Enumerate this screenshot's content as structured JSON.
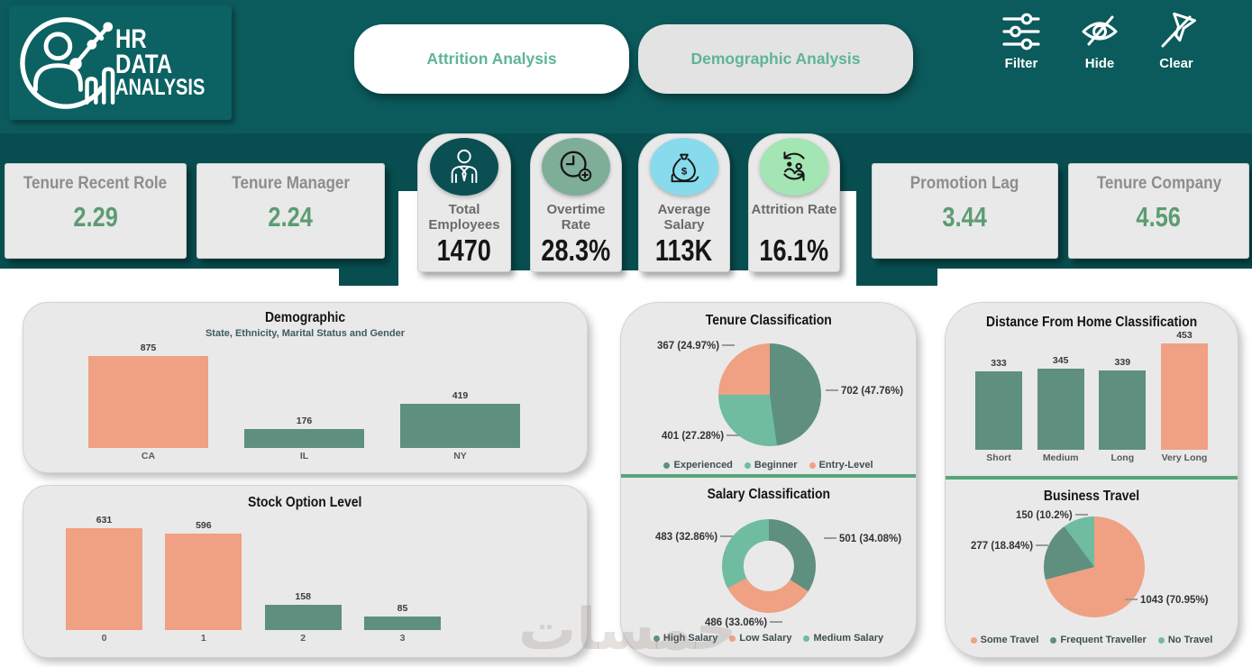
{
  "logo": {
    "line1": "HR",
    "line2": "DATA",
    "line3": "ANALYSIS"
  },
  "tabs": [
    {
      "label": "Attrition Analysis",
      "active": true
    },
    {
      "label": "Demographic Analysis",
      "active": false
    }
  ],
  "toolbar": [
    {
      "label": "Filter",
      "icon": "filter-sliders-icon"
    },
    {
      "label": "Hide",
      "icon": "eye-off-icon"
    },
    {
      "label": "Clear",
      "icon": "clear-filter-icon"
    }
  ],
  "kpis": {
    "left": [
      {
        "label": "Tenure Recent Role",
        "value": "2.29"
      },
      {
        "label": "Tenure Manager",
        "value": "2.24"
      }
    ],
    "center": [
      {
        "label": "Total Employees",
        "value": "1470",
        "icon": "employee-icon",
        "circle_color": "#0b4f52"
      },
      {
        "label": "Overtime Rate",
        "value": "28.3%",
        "icon": "clock-plus-icon",
        "circle_color": "#7fae98"
      },
      {
        "label": "Average Salary",
        "value": "113K",
        "icon": "money-bag-icon",
        "circle_color": "#87dbec"
      },
      {
        "label": "Attrition Rate",
        "value": "16.1%",
        "icon": "people-rotate-icon",
        "circle_color": "#a3e5b3"
      }
    ],
    "right": [
      {
        "label": "Promotion Lag",
        "value": "3.44"
      },
      {
        "label": "Tenure Company",
        "value": "4.56"
      }
    ]
  },
  "colors": {
    "teal_header": "#0b5a5c",
    "teal_dark": "#084e50",
    "card_gray": "#e9e9e9",
    "salmon": "#f0a183",
    "green_dark": "#5f8f7e",
    "green_mid": "#6fbca1",
    "divider_green": "#56a579",
    "kpi_value_green": "#5c9c73",
    "tab_text_green": "#5fb39b"
  },
  "chart_data": [
    {
      "type": "bar",
      "title": "Demographic",
      "subtitle": "State, Ethnicity, Marital Status and Gender",
      "categories": [
        "CA",
        "IL",
        "NY"
      ],
      "values": [
        875,
        176,
        419
      ],
      "bar_colors": [
        "#f0a183",
        "#5f8f7e",
        "#5f8f7e"
      ],
      "ylim": [
        0,
        875
      ],
      "grid": false,
      "legend_position": "none"
    },
    {
      "type": "bar",
      "title": "Stock Option Level",
      "categories": [
        "0",
        "1",
        "2",
        "3"
      ],
      "values": [
        631,
        596,
        158,
        85
      ],
      "bar_colors": [
        "#f0a183",
        "#f0a183",
        "#5f8f7e",
        "#5f8f7e"
      ],
      "ylim": [
        0,
        631
      ],
      "grid": false,
      "legend_position": "none"
    },
    {
      "type": "pie",
      "title": "Tenure Classification",
      "slices": [
        {
          "name": "Experienced",
          "value": 702,
          "pct": "47.76%",
          "label": "702 (47.76%)",
          "color": "#5f8f7e"
        },
        {
          "name": "Beginner",
          "value": 401,
          "pct": "27.28%",
          "label": "401 (27.28%)",
          "color": "#6fbca1"
        },
        {
          "name": "Entry-Level",
          "value": 367,
          "pct": "24.97%",
          "label": "367 (24.97%)",
          "color": "#f0a183"
        }
      ],
      "legend": [
        {
          "label": "Experienced",
          "color": "#5f8f7e"
        },
        {
          "label": "Beginner",
          "color": "#6fbca1"
        },
        {
          "label": "Entry-Level",
          "color": "#f0a183"
        }
      ],
      "legend_position": "bottom",
      "total": 1470
    },
    {
      "type": "pie",
      "title": "Salary Classification",
      "donut": true,
      "slices": [
        {
          "name": "High Salary",
          "value": 501,
          "pct": "34.08%",
          "label": "501 (34.08%)",
          "color": "#5f8f7e"
        },
        {
          "name": "Low Salary",
          "value": 486,
          "pct": "33.06%",
          "label": "486 (33.06%)",
          "color": "#f0a183"
        },
        {
          "name": "Medium Salary",
          "value": 483,
          "pct": "32.86%",
          "label": "483 (32.86%)",
          "color": "#6fbca1"
        }
      ],
      "legend": [
        {
          "label": "High Salary",
          "color": "#5f8f7e"
        },
        {
          "label": "Low Salary",
          "color": "#f0a183"
        },
        {
          "label": "Medium Salary",
          "color": "#6fbca1"
        }
      ],
      "legend_position": "bottom",
      "total": 1470
    },
    {
      "type": "bar",
      "title": "Distance From Home Classification",
      "categories": [
        "Short",
        "Medium",
        "Long",
        "Very Long"
      ],
      "values": [
        333,
        345,
        339,
        453
      ],
      "bar_colors": [
        "#5f8f7e",
        "#5f8f7e",
        "#5f8f7e",
        "#f0a183"
      ],
      "ylim": [
        0,
        453
      ],
      "grid": false,
      "legend_position": "none"
    },
    {
      "type": "pie",
      "title": "Business Travel",
      "slices": [
        {
          "name": "Some Travel",
          "value": 1043,
          "pct": "70.95%",
          "label": "1043 (70.95%)",
          "color": "#f0a183"
        },
        {
          "name": "Frequent Traveller",
          "value": 277,
          "pct": "18.84%",
          "label": "277 (18.84%)",
          "color": "#5f8f7e"
        },
        {
          "name": "No Travel",
          "value": 150,
          "pct": "10.2%",
          "label": "150 (10.2%)",
          "color": "#6fbca1"
        }
      ],
      "legend": [
        {
          "label": "Some Travel",
          "color": "#f0a183"
        },
        {
          "label": "Frequent Traveller",
          "color": "#5f8f7e"
        },
        {
          "label": "No Travel",
          "color": "#6fbca1"
        }
      ],
      "legend_position": "bottom",
      "total": 1470
    }
  ],
  "watermark": {
    "text": "خمسات"
  }
}
